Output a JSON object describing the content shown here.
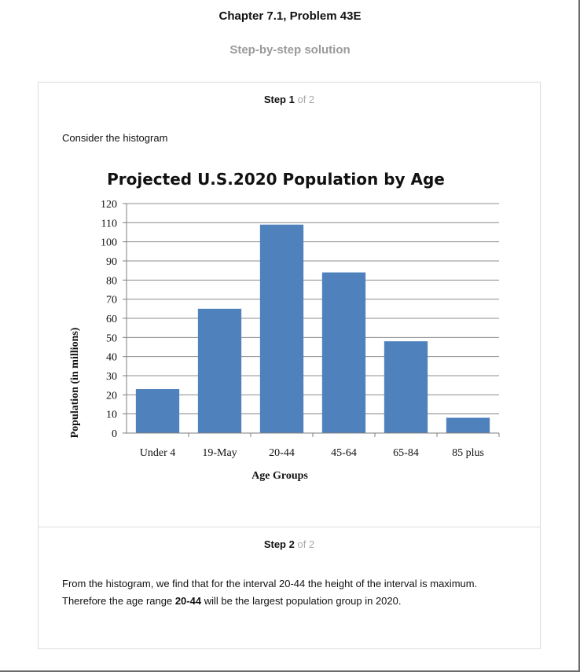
{
  "header": {
    "title": "Chapter 7.1, Problem 43E",
    "subtitle": "Step-by-step solution"
  },
  "steps": [
    {
      "label": "Step 1",
      "total": "of 2",
      "text": "Consider the histogram"
    },
    {
      "label": "Step 2",
      "total": "of 2",
      "line1": "From the histogram, we find that for the interval 20-44 the height of the interval is maximum.",
      "line2_before": "Therefore the age range ",
      "line2_bold": "20-44",
      "line2_after": " will be the largest population group in 2020."
    }
  ],
  "chart_data": {
    "type": "bar",
    "title": "Projected U.S.2020 Population by Age",
    "xlabel": "Age Groups",
    "ylabel": "Population (in millions)",
    "categories": [
      "Under 4",
      "19-May",
      "20-44",
      "45-64",
      "65-84",
      "85 plus"
    ],
    "values": [
      23,
      65,
      109,
      84,
      48,
      8
    ],
    "ylim": [
      0,
      120
    ],
    "yticks": [
      0,
      10,
      20,
      30,
      40,
      50,
      60,
      70,
      80,
      90,
      100,
      110,
      120
    ],
    "grid": true,
    "legend": "none",
    "colors": {
      "bar": "#4f81bd",
      "grid": "#8c8c8c",
      "axis": "#7f7f7f"
    }
  }
}
